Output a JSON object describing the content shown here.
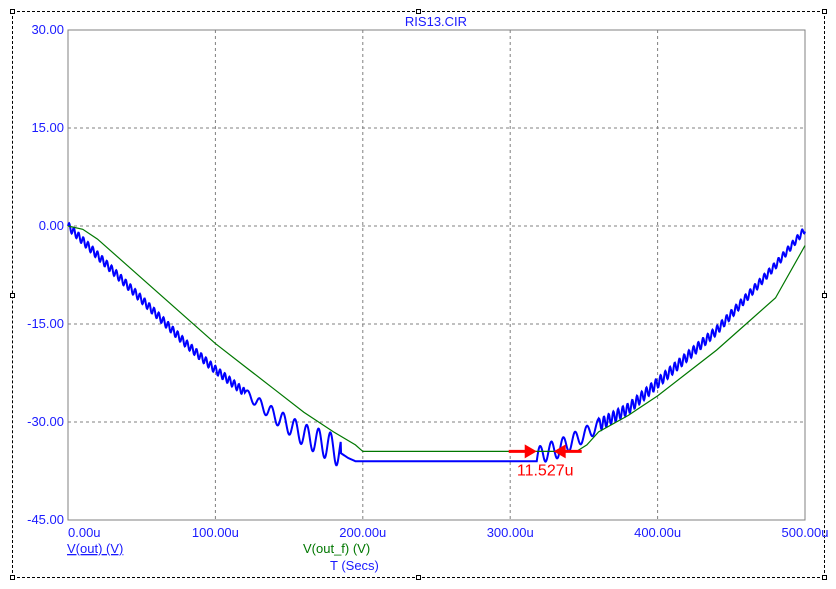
{
  "chart_data": {
    "type": "line",
    "title": "RIS13.CIR",
    "xlabel": "T (Secs)",
    "x_unit": "u",
    "xlim": [
      0,
      500
    ],
    "ylim": [
      -45,
      30
    ],
    "x_ticks": [
      0,
      100,
      200,
      300,
      400,
      500
    ],
    "x_tick_labels": [
      "0.00u",
      "100.00u",
      "200.00u",
      "300.00u",
      "400.00u",
      "500.00u"
    ],
    "y_ticks": [
      30,
      15,
      0,
      -15,
      -30,
      -45
    ],
    "y_tick_labels": [
      "30.00",
      "15.00",
      "0.00",
      "-15.00",
      "-30.00",
      "-45.00"
    ],
    "grid": true,
    "series": [
      {
        "name": "V(out) (V)",
        "color": "#0000ff",
        "points": [
          [
            0,
            0
          ],
          [
            20,
            -4.5
          ],
          [
            40,
            -9
          ],
          [
            60,
            -13.5
          ],
          [
            80,
            -18
          ],
          [
            100,
            -22
          ],
          [
            120,
            -25.5
          ],
          [
            140,
            -29
          ],
          [
            160,
            -32
          ],
          [
            180,
            -34
          ],
          [
            190,
            -35.5
          ],
          [
            195,
            -36
          ],
          [
            200,
            -36
          ],
          [
            250,
            -36
          ],
          [
            300,
            -36
          ],
          [
            318,
            -36
          ],
          [
            322,
            -34.6
          ],
          [
            330,
            -34.4
          ],
          [
            340,
            -33.2
          ],
          [
            350,
            -32
          ],
          [
            360,
            -30.5
          ],
          [
            380,
            -28
          ],
          [
            400,
            -24
          ],
          [
            420,
            -20
          ],
          [
            440,
            -16
          ],
          [
            460,
            -11
          ],
          [
            480,
            -6
          ],
          [
            500,
            -0.5
          ]
        ],
        "ripple_ranges": [
          [
            0,
            185
          ],
          [
            318,
            500
          ]
        ]
      },
      {
        "name": "V(out_f) (V)",
        "color": "#007700",
        "points": [
          [
            0,
            0
          ],
          [
            10,
            -0.5
          ],
          [
            20,
            -2
          ],
          [
            40,
            -6
          ],
          [
            60,
            -10
          ],
          [
            80,
            -14
          ],
          [
            100,
            -18
          ],
          [
            120,
            -21.5
          ],
          [
            140,
            -25
          ],
          [
            160,
            -28.5
          ],
          [
            180,
            -31.5
          ],
          [
            195,
            -33.5
          ],
          [
            200,
            -34.5
          ],
          [
            250,
            -34.5
          ],
          [
            300,
            -34.5
          ],
          [
            345,
            -34.5
          ],
          [
            352,
            -33.5
          ],
          [
            360,
            -31.5
          ],
          [
            380,
            -29
          ],
          [
            400,
            -26
          ],
          [
            420,
            -22.5
          ],
          [
            440,
            -19
          ],
          [
            460,
            -15
          ],
          [
            480,
            -11
          ],
          [
            500,
            -3
          ]
        ]
      }
    ],
    "annotations": [
      {
        "text": "11.527u",
        "color": "#ff0000",
        "x1": 318,
        "x2": 329.5,
        "y": -34.5
      }
    ]
  }
}
